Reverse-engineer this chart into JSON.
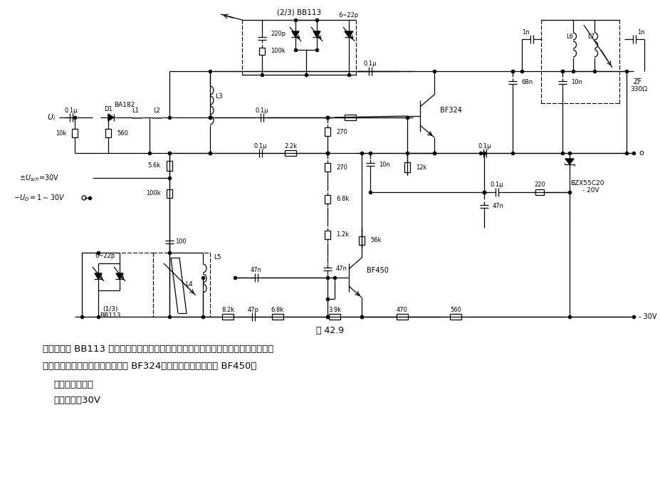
{
  "title": "图 42.9",
  "bg_color": "#ffffff",
  "caption1": "该电路采用 BB113 三调谐二极管，并可达到采用普通可变电容短波调谐器所具有的各",
  "caption2": "项指标数据。混频级采用硅晶体管 BF324，振赊器采用硅晶体管 BF450。",
  "caption3": "主要技术数据：",
  "caption4": "工作电压：30V"
}
